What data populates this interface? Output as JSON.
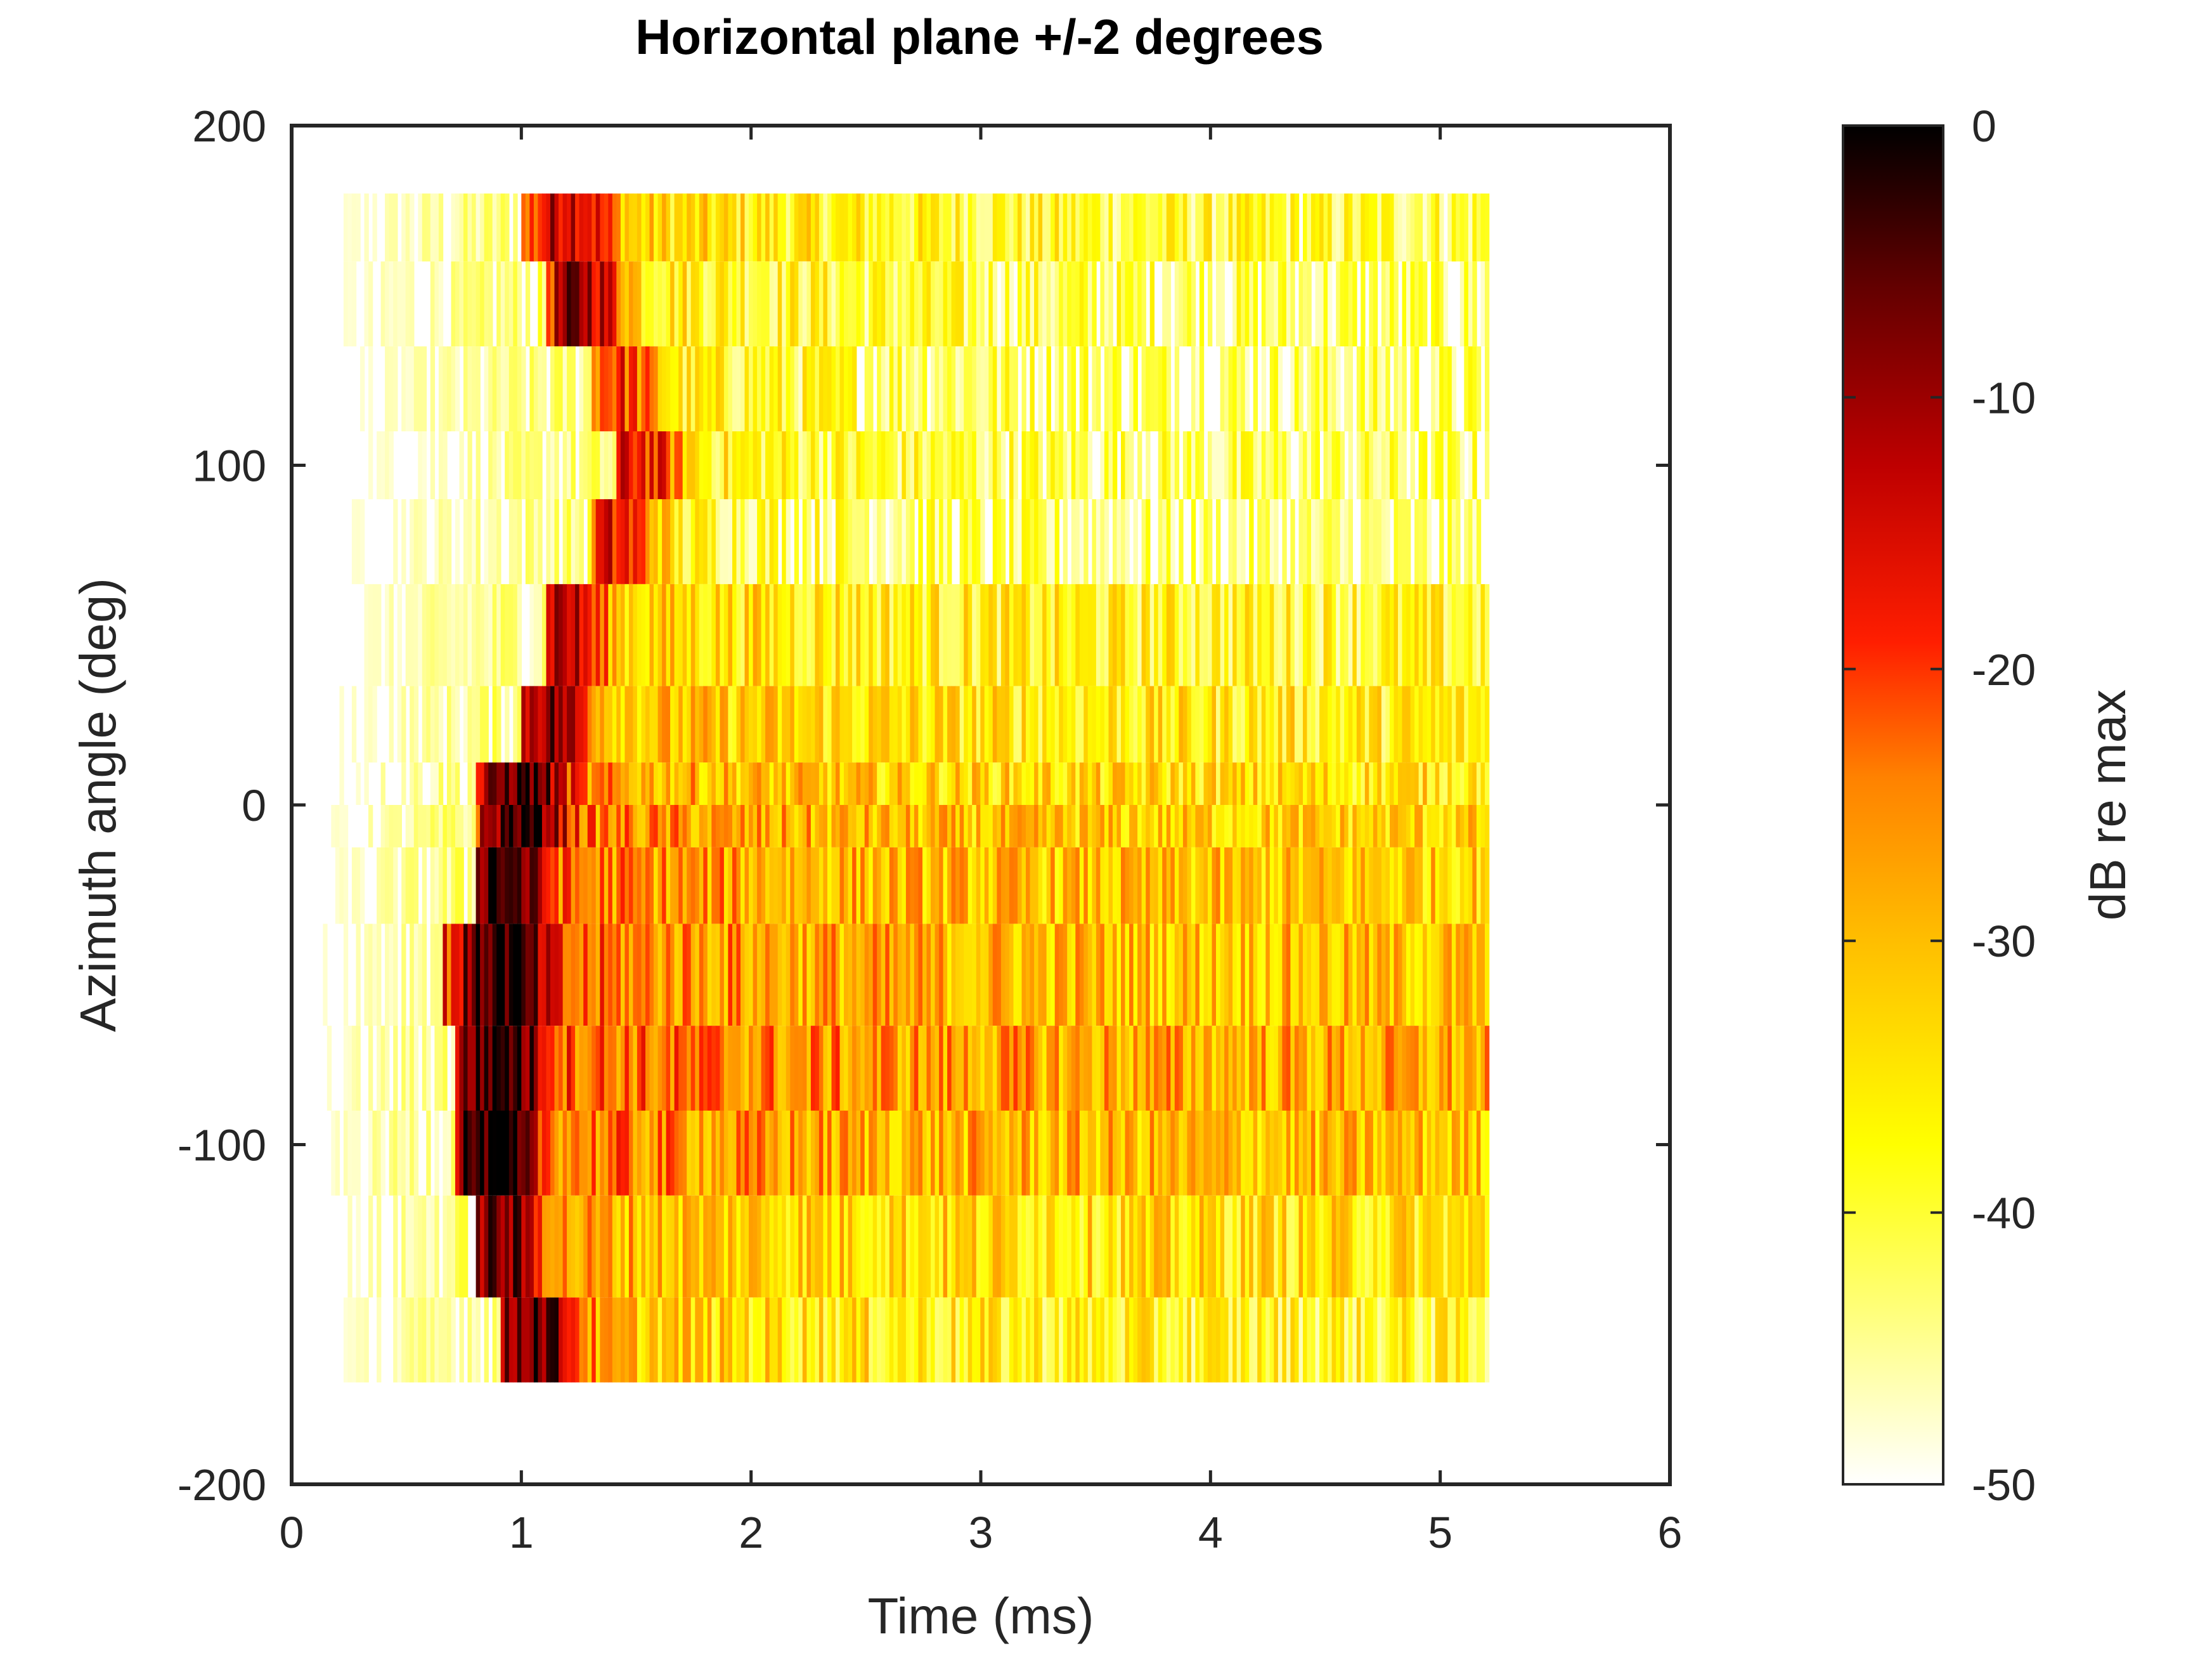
{
  "chart_data": {
    "type": "heatmap",
    "title": "Horizontal plane +/-2 degrees",
    "xlabel": "Time (ms)",
    "ylabel": "Azimuth angle (deg)",
    "xlim": [
      0,
      6
    ],
    "ylim": [
      -200,
      200
    ],
    "xticks": [
      "0",
      "1",
      "2",
      "3",
      "4",
      "5",
      "6"
    ],
    "yticks": [
      "-200",
      "-100",
      "0",
      "100",
      "200"
    ],
    "colorbar": {
      "label": "dB re max",
      "clim": [
        -50,
        0
      ],
      "ticks": [
        "-50",
        "-40",
        "-30",
        "-20",
        "-10",
        "0"
      ],
      "colormap": "hot (reversed)",
      "colors": [
        "#ffffff",
        "#ffff66",
        "#ffff00",
        "#ff9900",
        "#ff0000",
        "#a00000",
        "#000000"
      ]
    },
    "x_range_data": [
      0.1,
      5.2
    ],
    "bands": [
      {
        "azimuth": 170,
        "onset_ms": 1.0,
        "peak_ms": 1.2,
        "peak_db": -12,
        "floor_db": -42
      },
      {
        "azimuth": 150,
        "onset_ms": 1.1,
        "peak_ms": 1.25,
        "peak_db": -10,
        "floor_db": -45
      },
      {
        "azimuth": 120,
        "onset_ms": 1.3,
        "peak_ms": 1.4,
        "peak_db": -20,
        "floor_db": -45
      },
      {
        "azimuth": 100,
        "onset_ms": 1.4,
        "peak_ms": 1.5,
        "peak_db": -17,
        "floor_db": -45
      },
      {
        "azimuth": 80,
        "onset_ms": 1.3,
        "peak_ms": 1.4,
        "peak_db": -18,
        "floor_db": -47
      },
      {
        "azimuth": 50,
        "onset_ms": 1.1,
        "peak_ms": 1.15,
        "peak_db": -12,
        "floor_db": -40
      },
      {
        "azimuth": 20,
        "onset_ms": 1.0,
        "peak_ms": 1.1,
        "peak_db": -9,
        "floor_db": -38
      },
      {
        "azimuth": 5,
        "onset_ms": 0.8,
        "peak_ms": 1.0,
        "peak_db": -4,
        "floor_db": -36
      },
      {
        "azimuth": -5,
        "onset_ms": 0.8,
        "peak_ms": 1.0,
        "peak_db": -3,
        "floor_db": -34
      },
      {
        "azimuth": -20,
        "onset_ms": 0.8,
        "peak_ms": 0.9,
        "peak_db": -3,
        "floor_db": -33
      },
      {
        "azimuth": -50,
        "onset_ms": 0.65,
        "peak_ms": 0.9,
        "peak_db": -2,
        "floor_db": -32
      },
      {
        "azimuth": -80,
        "onset_ms": 0.7,
        "peak_ms": 0.9,
        "peak_db": -2,
        "floor_db": -30
      },
      {
        "azimuth": -100,
        "onset_ms": 0.7,
        "peak_ms": 0.85,
        "peak_db": -2,
        "floor_db": -32
      },
      {
        "azimuth": -130,
        "onset_ms": 0.8,
        "peak_ms": 0.9,
        "peak_db": -8,
        "floor_db": -36
      },
      {
        "azimuth": -160,
        "onset_ms": 0.9,
        "peak_ms": 1.05,
        "peak_db": -5,
        "floor_db": -40
      }
    ]
  }
}
